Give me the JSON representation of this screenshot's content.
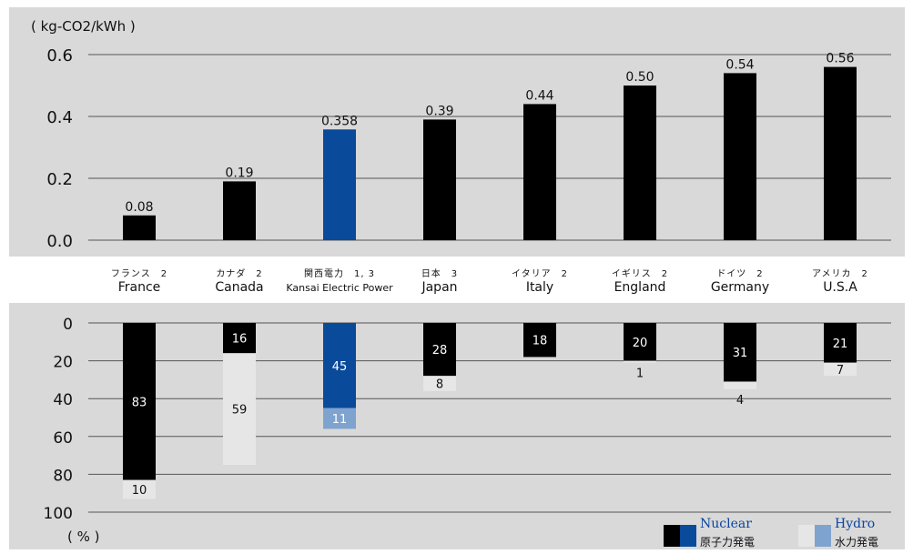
{
  "chart_data": [
    {
      "type": "bar",
      "ylabel": "( kg-CO2/kWh )",
      "ylim": [
        0,
        0.6
      ],
      "yticks": [
        "0.0",
        "0.2",
        "0.4",
        "0.6"
      ],
      "categories_en": [
        "France",
        "Canada",
        "Kansai Electric Power",
        "Japan",
        "Italy",
        "England",
        "Germany",
        "U.S.A"
      ],
      "categories_jp": [
        "フランス　2",
        "カナダ　2",
        "関西電力　1, 3",
        "日本　3",
        "イタリア　2",
        "イギリス　2",
        "ドイツ　2",
        "アメリカ　2"
      ],
      "values": [
        0.08,
        0.19,
        0.358,
        0.39,
        0.44,
        0.5,
        0.54,
        0.56
      ],
      "value_labels": [
        "0.08",
        "0.19",
        "0.358",
        "0.39",
        "0.44",
        "0.50",
        "0.54",
        "0.56"
      ],
      "highlight_index": 2,
      "grid": true
    },
    {
      "type": "bar",
      "stacked": true,
      "inverted": true,
      "ylabel": "( % )",
      "ylim": [
        0,
        100
      ],
      "yticks": [
        "0",
        "20",
        "40",
        "60",
        "80",
        "100"
      ],
      "categories_en": [
        "France",
        "Canada",
        "Kansai Electric Power",
        "Japan",
        "Italy",
        "England",
        "Germany",
        "U.S.A"
      ],
      "series": [
        {
          "name": "Nuclear",
          "values": [
            83,
            16,
            45,
            28,
            18,
            20,
            31,
            21
          ]
        },
        {
          "name": "Hydro",
          "values": [
            10,
            59,
            11,
            8,
            null,
            1,
            4,
            7
          ]
        }
      ],
      "highlight_index": 2,
      "grid": true
    }
  ],
  "legend": {
    "nuclear_en": "Nuclear",
    "nuclear_jp": "原子力発電",
    "hydro_en": "Hydro",
    "hydro_jp": "水力発電"
  },
  "colors": {
    "panel": "#d9d9d9",
    "bar": "#000000",
    "highlight": "#0a4a9b",
    "hydro": "#e6e6e6",
    "hydro_highlight": "#7fa3cf"
  }
}
